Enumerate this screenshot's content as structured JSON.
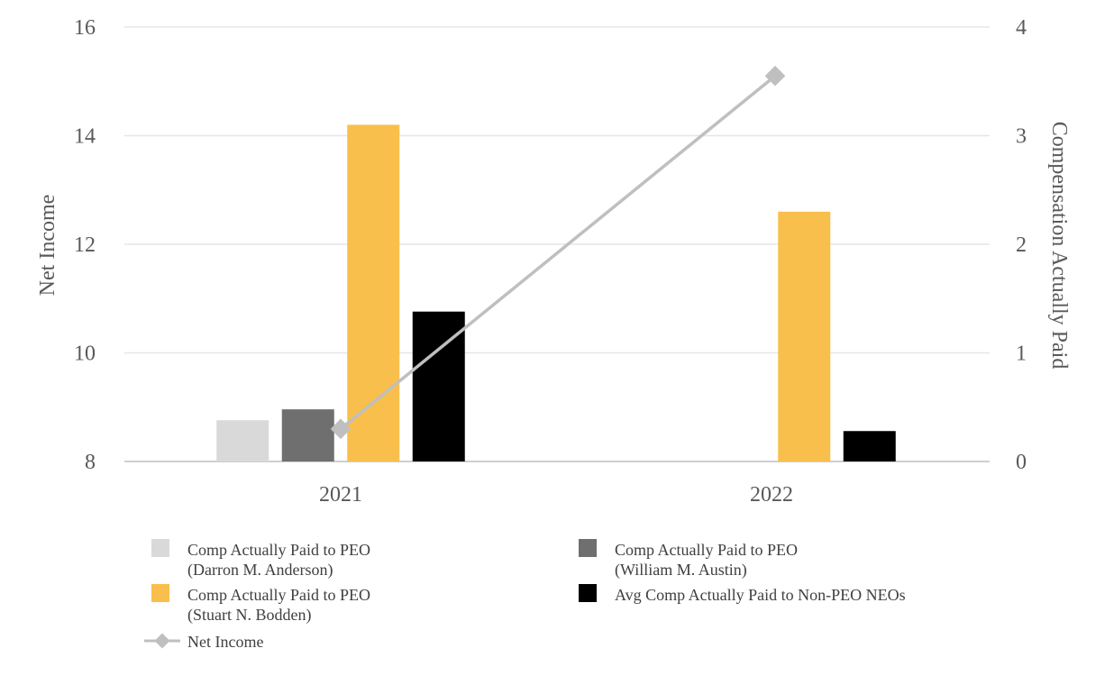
{
  "chart_data": {
    "type": "bar",
    "categories": [
      "2021",
      "2022"
    ],
    "left_axis": {
      "label": "Net Income",
      "ylim": [
        8,
        16
      ],
      "ticks": [
        8,
        10,
        12,
        14,
        16
      ]
    },
    "right_axis": {
      "label": "Compensation Actually Paid",
      "ylim": [
        0,
        4
      ],
      "ticks": [
        0,
        1,
        2,
        3,
        4
      ]
    },
    "grid": true,
    "series": [
      {
        "name": "Comp Actually Paid to PEO (Darron M. Anderson)",
        "legend_lines": [
          "Comp Actually Paid to PEO",
          "(Darron M. Anderson)"
        ],
        "kind": "bar",
        "axis": "right",
        "color": "#d9d9d9",
        "values": [
          0.38,
          null
        ]
      },
      {
        "name": "Comp Actually Paid to PEO (William M. Austin)",
        "legend_lines": [
          "Comp Actually Paid to PEO",
          "(William M. Austin)"
        ],
        "kind": "bar",
        "axis": "right",
        "color": "#6f6f6f",
        "values": [
          0.48,
          null
        ]
      },
      {
        "name": "Comp Actually Paid to PEO (Stuart N. Bodden)",
        "legend_lines": [
          "Comp Actually Paid to PEO",
          "(Stuart N. Bodden)"
        ],
        "kind": "bar",
        "axis": "right",
        "color": "#f9bf4c",
        "values": [
          3.1,
          2.3
        ]
      },
      {
        "name": "Avg Comp Actually Paid to Non-PEO NEOs",
        "legend_lines": [
          "Avg Comp Actually Paid to Non-PEO NEOs"
        ],
        "kind": "bar",
        "axis": "right",
        "color": "#000000",
        "values": [
          1.38,
          0.28
        ]
      },
      {
        "name": "Net Income",
        "legend_lines": [
          "Net Income"
        ],
        "kind": "line",
        "axis": "left",
        "color": "#bfbfbf",
        "values": [
          8.6,
          15.1
        ]
      }
    ]
  }
}
